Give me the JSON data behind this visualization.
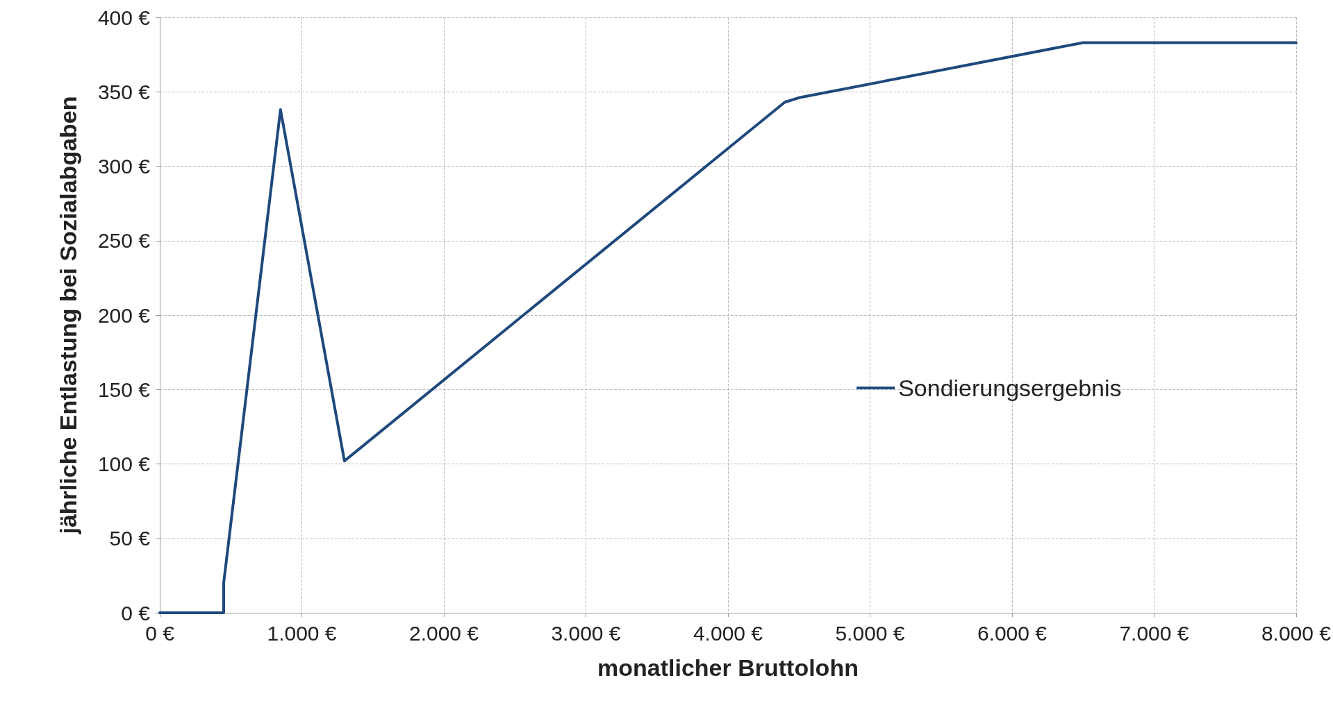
{
  "chart_data": {
    "type": "line",
    "xlabel": "monatlicher Bruttolohn",
    "ylabel": "jährliche Entlastung bei Sozialabgaben",
    "series": [
      {
        "name": "Sondierungsergebnis",
        "color": "#1f497d",
        "x": [
          0,
          450,
          450,
          850,
          1300,
          4400,
          4500,
          6500,
          8000
        ],
        "values": [
          0,
          0,
          20,
          338,
          102,
          343,
          346,
          383,
          383
        ]
      }
    ],
    "xlim": [
      0,
      8000
    ],
    "ylim": [
      0,
      400
    ],
    "xticks": [
      {
        "value": 0,
        "label": "0 €"
      },
      {
        "value": 1000,
        "label": "1.000 €"
      },
      {
        "value": 2000,
        "label": "2.000 €"
      },
      {
        "value": 3000,
        "label": "3.000 €"
      },
      {
        "value": 4000,
        "label": "4.000 €"
      },
      {
        "value": 5000,
        "label": "5.000 €"
      },
      {
        "value": 6000,
        "label": "6.000 €"
      },
      {
        "value": 7000,
        "label": "7.000 €"
      },
      {
        "value": 8000,
        "label": "8.000 €"
      }
    ],
    "yticks": [
      {
        "value": 0,
        "label": "0 €"
      },
      {
        "value": 50,
        "label": "50 €"
      },
      {
        "value": 100,
        "label": "100 €"
      },
      {
        "value": 150,
        "label": "150 €"
      },
      {
        "value": 200,
        "label": "200 €"
      },
      {
        "value": 250,
        "label": "250 €"
      },
      {
        "value": 300,
        "label": "300 €"
      },
      {
        "value": 350,
        "label": "350 €"
      },
      {
        "value": 400,
        "label": "400 €"
      }
    ],
    "grid": true,
    "legend": "right",
    "marker": "none",
    "line_style": "solid"
  }
}
